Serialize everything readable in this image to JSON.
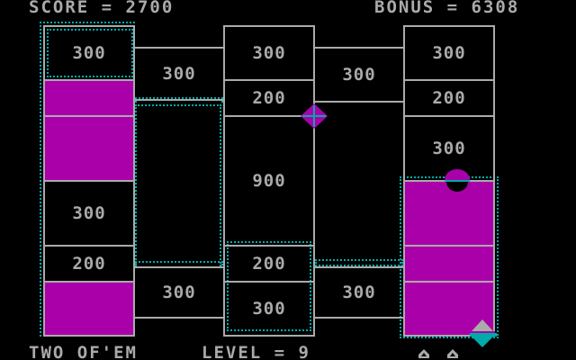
{
  "hud": {
    "score_label": "SCORE = 2700",
    "bonus_label": "BONUS = 6308",
    "player_label": "TWO OF'EM",
    "level_label": "LEVEL = 9"
  },
  "colors": {
    "outline": "#aaaaaa",
    "filled": "#aa00aa",
    "trail": "#00aaaa"
  },
  "columns": [
    [
      "300",
      "",
      "",
      "300",
      "200",
      ""
    ],
    [
      "300",
      "200",
      "900",
      "200",
      "300"
    ],
    [
      "300",
      "200",
      "300",
      "",
      "",
      ""
    ]
  ],
  "bridges": {
    "left": [
      "300",
      "300"
    ],
    "right": [
      "300",
      "300"
    ]
  },
  "lives": 2
}
